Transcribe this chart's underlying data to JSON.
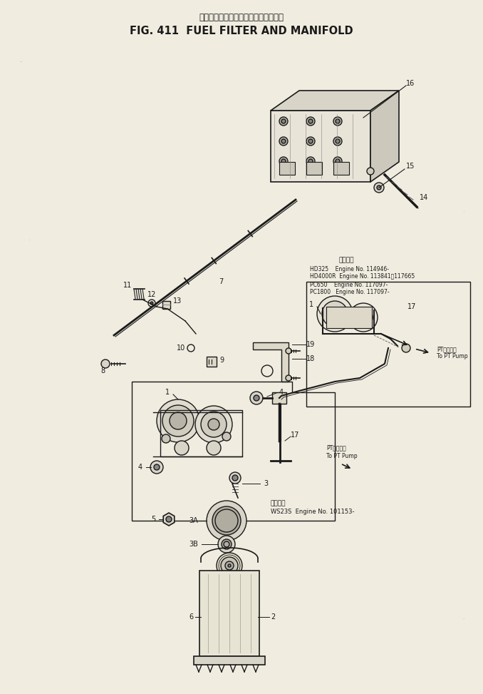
{
  "title_japanese": "フェルフィルタおよび　マニホールド",
  "title_english": "FIG. 411  FUEL FILTER AND MANIFOLD",
  "bg_color": "#f0ece0",
  "line_color": "#1a1a1a",
  "applicability_lines_upper": [
    "適用号機",
    "HD325    Engine No. 114946-",
    "HD4000R  Engine No. 113841～117665",
    "PC650    Engine No. 117097-",
    "PC1800   Engine No. 117097-"
  ],
  "applicability_line_lower": "WS23S  Engine No. 101153-"
}
